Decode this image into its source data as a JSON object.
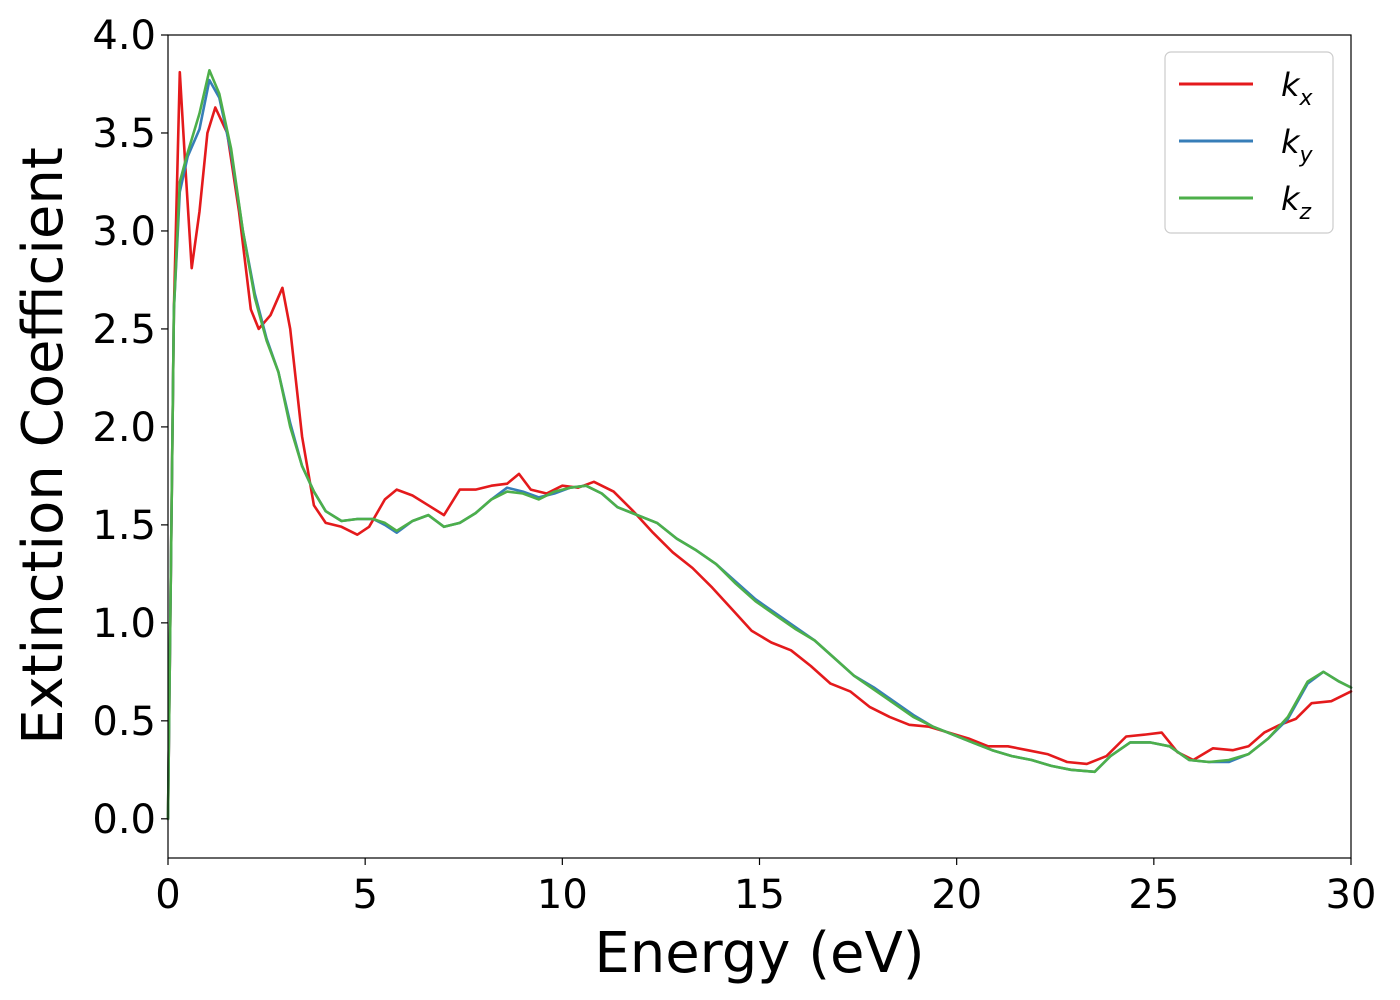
{
  "chart_data": {
    "type": "line",
    "title": "",
    "xlabel": "Energy (eV)",
    "ylabel": "Extinction Coefficient",
    "xlim": [
      0,
      30
    ],
    "ylim": [
      -0.2,
      4.0
    ],
    "xticks": [
      0,
      5,
      10,
      15,
      20,
      25,
      30
    ],
    "xtick_labels": [
      "0",
      "5",
      "10",
      "15",
      "20",
      "25",
      "30"
    ],
    "yticks": [
      0.0,
      0.5,
      1.0,
      1.5,
      2.0,
      2.5,
      3.0,
      3.5,
      4.0
    ],
    "ytick_labels": [
      "0.0",
      "0.5",
      "1.0",
      "1.5",
      "2.0",
      "2.5",
      "3.0",
      "3.5",
      "4.0"
    ],
    "grid": false,
    "legend_position": "top-right",
    "series": [
      {
        "name": "k_x",
        "legend_base": "k",
        "legend_sub": "x",
        "color": "#e41a1c",
        "points": [
          [
            0.0,
            0.0
          ],
          [
            0.15,
            2.6
          ],
          [
            0.3,
            3.81
          ],
          [
            0.45,
            3.3
          ],
          [
            0.6,
            2.81
          ],
          [
            0.8,
            3.1
          ],
          [
            1.0,
            3.5
          ],
          [
            1.2,
            3.63
          ],
          [
            1.5,
            3.5
          ],
          [
            1.8,
            3.1
          ],
          [
            2.1,
            2.6
          ],
          [
            2.3,
            2.5
          ],
          [
            2.6,
            2.57
          ],
          [
            2.9,
            2.71
          ],
          [
            3.1,
            2.5
          ],
          [
            3.4,
            1.95
          ],
          [
            3.7,
            1.6
          ],
          [
            4.0,
            1.51
          ],
          [
            4.4,
            1.49
          ],
          [
            4.8,
            1.45
          ],
          [
            5.1,
            1.49
          ],
          [
            5.5,
            1.63
          ],
          [
            5.8,
            1.68
          ],
          [
            6.2,
            1.65
          ],
          [
            6.6,
            1.6
          ],
          [
            7.0,
            1.55
          ],
          [
            7.4,
            1.68
          ],
          [
            7.8,
            1.68
          ],
          [
            8.2,
            1.7
          ],
          [
            8.6,
            1.71
          ],
          [
            8.9,
            1.76
          ],
          [
            9.2,
            1.68
          ],
          [
            9.6,
            1.66
          ],
          [
            10.0,
            1.7
          ],
          [
            10.4,
            1.69
          ],
          [
            10.8,
            1.72
          ],
          [
            11.3,
            1.67
          ],
          [
            11.8,
            1.57
          ],
          [
            12.3,
            1.46
          ],
          [
            12.8,
            1.36
          ],
          [
            13.3,
            1.28
          ],
          [
            13.8,
            1.18
          ],
          [
            14.3,
            1.07
          ],
          [
            14.8,
            0.96
          ],
          [
            15.3,
            0.9
          ],
          [
            15.8,
            0.86
          ],
          [
            16.3,
            0.78
          ],
          [
            16.8,
            0.69
          ],
          [
            17.3,
            0.65
          ],
          [
            17.8,
            0.57
          ],
          [
            18.3,
            0.52
          ],
          [
            18.8,
            0.48
          ],
          [
            19.3,
            0.47
          ],
          [
            19.8,
            0.44
          ],
          [
            20.3,
            0.41
          ],
          [
            20.8,
            0.37
          ],
          [
            21.3,
            0.37
          ],
          [
            21.8,
            0.35
          ],
          [
            22.3,
            0.33
          ],
          [
            22.8,
            0.29
          ],
          [
            23.3,
            0.28
          ],
          [
            23.8,
            0.32
          ],
          [
            24.3,
            0.42
          ],
          [
            24.8,
            0.43
          ],
          [
            25.2,
            0.44
          ],
          [
            25.6,
            0.34
          ],
          [
            26.0,
            0.3
          ],
          [
            26.5,
            0.36
          ],
          [
            27.0,
            0.35
          ],
          [
            27.4,
            0.37
          ],
          [
            27.8,
            0.44
          ],
          [
            28.2,
            0.48
          ],
          [
            28.6,
            0.51
          ],
          [
            29.0,
            0.59
          ],
          [
            29.5,
            0.6
          ],
          [
            30.0,
            0.65
          ]
        ]
      },
      {
        "name": "k_y",
        "legend_base": "k",
        "legend_sub": "y",
        "color": "#377eb8",
        "points": [
          [
            0.0,
            0.0
          ],
          [
            0.15,
            2.6
          ],
          [
            0.3,
            3.2
          ],
          [
            0.5,
            3.38
          ],
          [
            0.8,
            3.52
          ],
          [
            1.05,
            3.77
          ],
          [
            1.3,
            3.68
          ],
          [
            1.6,
            3.4
          ],
          [
            1.9,
            3.0
          ],
          [
            2.2,
            2.68
          ],
          [
            2.5,
            2.45
          ],
          [
            2.8,
            2.28
          ],
          [
            3.1,
            2.02
          ],
          [
            3.4,
            1.8
          ],
          [
            3.7,
            1.67
          ],
          [
            4.0,
            1.57
          ],
          [
            4.4,
            1.52
          ],
          [
            4.8,
            1.53
          ],
          [
            5.2,
            1.53
          ],
          [
            5.5,
            1.5
          ],
          [
            5.8,
            1.46
          ],
          [
            6.2,
            1.52
          ],
          [
            6.6,
            1.55
          ],
          [
            7.0,
            1.49
          ],
          [
            7.4,
            1.51
          ],
          [
            7.8,
            1.56
          ],
          [
            8.2,
            1.63
          ],
          [
            8.6,
            1.69
          ],
          [
            9.0,
            1.67
          ],
          [
            9.4,
            1.64
          ],
          [
            9.8,
            1.66
          ],
          [
            10.2,
            1.69
          ],
          [
            10.6,
            1.7
          ],
          [
            11.0,
            1.66
          ],
          [
            11.4,
            1.59
          ],
          [
            11.9,
            1.55
          ],
          [
            12.4,
            1.51
          ],
          [
            12.9,
            1.43
          ],
          [
            13.4,
            1.37
          ],
          [
            13.9,
            1.3
          ],
          [
            14.4,
            1.21
          ],
          [
            14.9,
            1.12
          ],
          [
            15.4,
            1.05
          ],
          [
            15.9,
            0.98
          ],
          [
            16.4,
            0.91
          ],
          [
            16.9,
            0.82
          ],
          [
            17.4,
            0.73
          ],
          [
            17.9,
            0.67
          ],
          [
            18.4,
            0.6
          ],
          [
            18.9,
            0.53
          ],
          [
            19.4,
            0.47
          ],
          [
            19.9,
            0.43
          ],
          [
            20.4,
            0.39
          ],
          [
            20.9,
            0.35
          ],
          [
            21.4,
            0.32
          ],
          [
            21.9,
            0.3
          ],
          [
            22.4,
            0.27
          ],
          [
            22.9,
            0.25
          ],
          [
            23.5,
            0.24
          ],
          [
            23.9,
            0.32
          ],
          [
            24.4,
            0.39
          ],
          [
            24.9,
            0.39
          ],
          [
            25.4,
            0.37
          ],
          [
            25.9,
            0.3
          ],
          [
            26.4,
            0.29
          ],
          [
            26.9,
            0.29
          ],
          [
            27.4,
            0.33
          ],
          [
            27.9,
            0.41
          ],
          [
            28.4,
            0.51
          ],
          [
            28.9,
            0.69
          ],
          [
            29.3,
            0.75
          ],
          [
            29.7,
            0.7
          ],
          [
            30.0,
            0.67
          ]
        ]
      },
      {
        "name": "k_z",
        "legend_base": "k",
        "legend_sub": "z",
        "color": "#4daf4a",
        "points": [
          [
            0.0,
            0.0
          ],
          [
            0.15,
            2.6
          ],
          [
            0.3,
            3.25
          ],
          [
            0.5,
            3.4
          ],
          [
            0.8,
            3.6
          ],
          [
            1.05,
            3.82
          ],
          [
            1.3,
            3.7
          ],
          [
            1.6,
            3.42
          ],
          [
            1.9,
            3.0
          ],
          [
            2.2,
            2.66
          ],
          [
            2.5,
            2.44
          ],
          [
            2.8,
            2.28
          ],
          [
            3.1,
            2.0
          ],
          [
            3.4,
            1.8
          ],
          [
            3.7,
            1.67
          ],
          [
            4.0,
            1.57
          ],
          [
            4.4,
            1.52
          ],
          [
            4.8,
            1.53
          ],
          [
            5.2,
            1.53
          ],
          [
            5.5,
            1.51
          ],
          [
            5.8,
            1.47
          ],
          [
            6.2,
            1.52
          ],
          [
            6.6,
            1.55
          ],
          [
            7.0,
            1.49
          ],
          [
            7.4,
            1.51
          ],
          [
            7.8,
            1.56
          ],
          [
            8.2,
            1.63
          ],
          [
            8.6,
            1.67
          ],
          [
            9.0,
            1.66
          ],
          [
            9.4,
            1.63
          ],
          [
            9.8,
            1.67
          ],
          [
            10.2,
            1.69
          ],
          [
            10.6,
            1.7
          ],
          [
            11.0,
            1.66
          ],
          [
            11.4,
            1.59
          ],
          [
            11.9,
            1.55
          ],
          [
            12.4,
            1.51
          ],
          [
            12.9,
            1.43
          ],
          [
            13.4,
            1.37
          ],
          [
            13.9,
            1.3
          ],
          [
            14.4,
            1.2
          ],
          [
            14.9,
            1.11
          ],
          [
            15.4,
            1.04
          ],
          [
            15.9,
            0.97
          ],
          [
            16.4,
            0.91
          ],
          [
            16.9,
            0.82
          ],
          [
            17.4,
            0.73
          ],
          [
            17.9,
            0.66
          ],
          [
            18.4,
            0.59
          ],
          [
            18.9,
            0.52
          ],
          [
            19.4,
            0.47
          ],
          [
            19.9,
            0.43
          ],
          [
            20.4,
            0.39
          ],
          [
            20.9,
            0.35
          ],
          [
            21.4,
            0.32
          ],
          [
            21.9,
            0.3
          ],
          [
            22.4,
            0.27
          ],
          [
            22.9,
            0.25
          ],
          [
            23.5,
            0.24
          ],
          [
            23.9,
            0.32
          ],
          [
            24.4,
            0.39
          ],
          [
            24.9,
            0.39
          ],
          [
            25.4,
            0.37
          ],
          [
            25.9,
            0.3
          ],
          [
            26.4,
            0.29
          ],
          [
            26.9,
            0.3
          ],
          [
            27.4,
            0.33
          ],
          [
            27.9,
            0.41
          ],
          [
            28.4,
            0.52
          ],
          [
            28.9,
            0.7
          ],
          [
            29.3,
            0.75
          ],
          [
            29.7,
            0.7
          ],
          [
            30.0,
            0.67
          ]
        ]
      }
    ]
  }
}
